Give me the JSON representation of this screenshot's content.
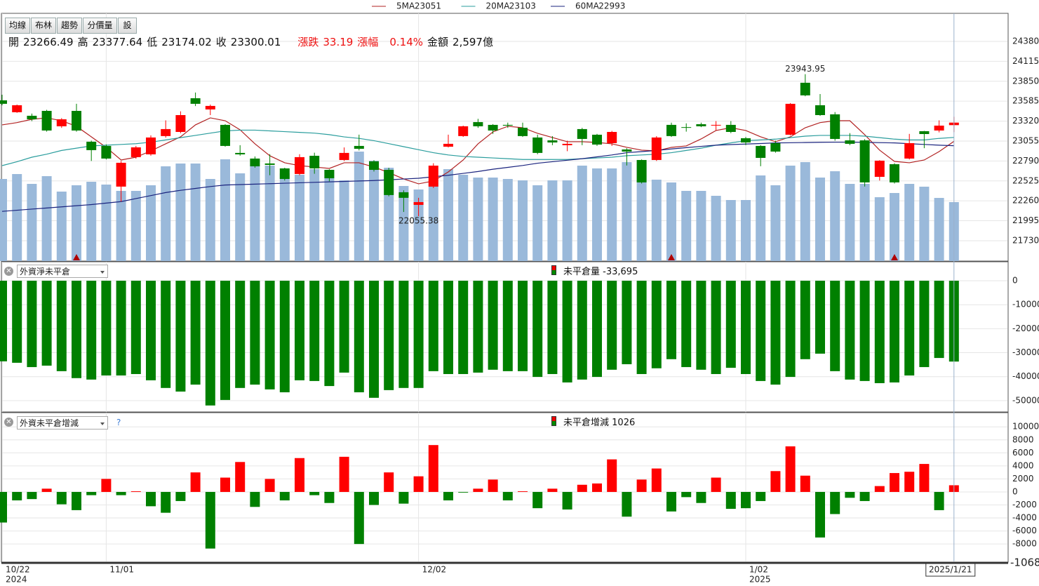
{
  "toolbar": [
    "均線",
    "布林",
    "趨勢",
    "分價量",
    "設"
  ],
  "info": [
    {
      "label": "開",
      "value": "23266.49"
    },
    {
      "label": "高",
      "value": "23377.64"
    },
    {
      "label": "低",
      "value": "23174.02"
    },
    {
      "label": "收",
      "value": "23300.01"
    },
    {
      "label": "漲跌",
      "value": "33.19",
      "color": "#ee1111"
    },
    {
      "label": "漲幅",
      "value": "0.14%",
      "color": "#ee1111"
    },
    {
      "label": "金額",
      "value": "2,597億"
    }
  ],
  "chart_data": [
    {
      "type": "candlestick",
      "up_color": "#ff0000",
      "down_color": "#008000",
      "ylim": [
        21459,
        24753
      ],
      "yticks": [
        24380,
        24115,
        23850,
        23585,
        23320,
        23055,
        22790,
        22525,
        22260,
        21995,
        21730
      ],
      "grid": true,
      "open": [
        23596,
        23438,
        23391,
        23456,
        23251,
        23456,
        23046,
        22990,
        22449,
        22841,
        22878,
        23121,
        23176,
        23624,
        23475,
        23270,
        22897,
        22822,
        22757,
        22691,
        22617,
        22859,
        22672,
        22803,
        22990,
        22785,
        22672,
        22374,
        22206,
        22449,
        22980,
        23121,
        23307,
        23270,
        23270,
        23232,
        23102,
        23064,
        23000,
        23214,
        23139,
        23027,
        22943,
        22803,
        22803,
        23270,
        23240,
        23279,
        23262,
        23270,
        23092,
        22990,
        23027,
        23139,
        23830,
        23531,
        23410,
        23064,
        23064,
        22579,
        22747,
        22822,
        23186,
        23195,
        23266.49
      ],
      "high": [
        23671,
        23540,
        23420,
        23470,
        23360,
        23550,
        23060,
        23010,
        22790,
        22990,
        23130,
        23330,
        23450,
        23700,
        23540,
        23280,
        23000,
        22850,
        22880,
        22700,
        22880,
        22900,
        22680,
        22970,
        23140,
        22800,
        22700,
        22400,
        22300,
        22760,
        23140,
        23260,
        23350,
        23280,
        23300,
        23300,
        23140,
        23120,
        23060,
        23230,
        23150,
        23190,
        22960,
        22810,
        23120,
        23300,
        23290,
        23300,
        23320,
        23320,
        23110,
        23000,
        23060,
        23560,
        23943.95,
        23680,
        23440,
        23160,
        23080,
        22800,
        22760,
        23150,
        23190,
        23330,
        23377.64
      ],
      "low": [
        23531,
        23430,
        23320,
        23180,
        23230,
        23180,
        22790,
        22810,
        22250,
        22820,
        22860,
        23100,
        23160,
        23520,
        23400,
        22980,
        22860,
        22700,
        22600,
        22530,
        22600,
        22620,
        22520,
        22790,
        22930,
        22650,
        22320,
        22112,
        22055.38,
        22430,
        22970,
        23110,
        23230,
        23150,
        23230,
        23110,
        22880,
        23000,
        22920,
        23000,
        22990,
        22990,
        22730,
        22490,
        22790,
        23110,
        23180,
        23240,
        23200,
        23160,
        23000,
        22720,
        22900,
        23130,
        23650,
        23390,
        23060,
        23000,
        22450,
        22530,
        22490,
        22810,
        22960,
        23170,
        23174.02
      ],
      "close": [
        23550,
        23531,
        23344,
        23195,
        23344,
        23195,
        22934,
        22822,
        22766,
        22971,
        23102,
        23214,
        23400,
        23550,
        23522,
        22990,
        22878,
        22719,
        22738,
        22551,
        22841,
        22691,
        22560,
        22897,
        22952,
        22672,
        22337,
        22300,
        22243,
        22728,
        23018,
        23251,
        23251,
        23195,
        23260,
        23121,
        22897,
        23036,
        23018,
        23083,
        23008,
        23176,
        22915,
        22505,
        23102,
        23121,
        23232,
        23251,
        23270,
        23176,
        23036,
        22831,
        22915,
        23550,
        23662,
        23400,
        23083,
        23018,
        22505,
        22794,
        22505,
        23027,
        23148,
        23260,
        23300.01
      ],
      "ma": [
        {
          "name": "5MA",
          "color": "#b22222",
          "legend_value": 23051,
          "values": [
            23270,
            23300,
            23344,
            23363,
            23325,
            23251,
            23111,
            22971,
            22803,
            22840,
            22924,
            23018,
            23111,
            23270,
            23363,
            23325,
            23204,
            23018,
            22859,
            22766,
            22728,
            22710,
            22691,
            22766,
            22766,
            22710,
            22635,
            22551,
            22486,
            22523,
            22644,
            22803,
            23018,
            23176,
            23251,
            23232,
            23158,
            23102,
            23046,
            23046,
            23036,
            23018,
            22971,
            22934,
            22924,
            22971,
            22990,
            23083,
            23195,
            23232,
            23195,
            23111,
            23046,
            23111,
            23232,
            23300,
            23325,
            23325,
            23139,
            22934,
            22784,
            22766,
            22803,
            22915,
            23051
          ]
        },
        {
          "name": "20MA",
          "color": "#2a9d9d",
          "legend_value": 23103,
          "values": [
            22728,
            22780,
            22840,
            22880,
            22930,
            22960,
            22990,
            23000,
            23010,
            23020,
            23040,
            23070,
            23100,
            23130,
            23160,
            23190,
            23200,
            23200,
            23190,
            23180,
            23170,
            23160,
            23140,
            23110,
            23090,
            23060,
            23020,
            22980,
            22940,
            22900,
            22870,
            22850,
            22840,
            22830,
            22820,
            22810,
            22810,
            22810,
            22810,
            22820,
            22830,
            22840,
            22860,
            22870,
            22880,
            22900,
            22930,
            22960,
            23000,
            23030,
            23060,
            23070,
            23080,
            23100,
            23120,
            23130,
            23130,
            23130,
            23120,
            23100,
            23080,
            23070,
            23070,
            23090,
            23103
          ]
        },
        {
          "name": "60MA",
          "color": "#1a237e",
          "legend_value": 22993,
          "values": [
            22120,
            22135,
            22150,
            22165,
            22180,
            22195,
            22210,
            22230,
            22250,
            22290,
            22330,
            22370,
            22400,
            22425,
            22450,
            22470,
            22476,
            22482,
            22488,
            22494,
            22500,
            22506,
            22512,
            22518,
            22524,
            22530,
            22540,
            22550,
            22560,
            22580,
            22600,
            22625,
            22650,
            22680,
            22705,
            22730,
            22760,
            22780,
            22800,
            22820,
            22845,
            22870,
            22900,
            22915,
            22930,
            22950,
            22967,
            22984,
            23000,
            23008,
            23015,
            23022,
            23030,
            23032,
            23035,
            23038,
            23040,
            23040,
            23037,
            23033,
            23030,
            23020,
            23010,
            23000,
            22993
          ]
        }
      ],
      "volume": {
        "color": "#9ab9da",
        "vlim": [
          0,
          353
        ],
        "values": [
          117,
          124,
          110,
          121,
          99,
          108,
          113,
          109,
          100,
          100,
          108,
          135,
          139,
          139,
          117,
          145,
          125,
          136,
          136,
          125,
          123,
          131,
          130,
          115,
          156,
          143,
          133,
          107,
          102,
          112,
          131,
          123,
          119,
          119,
          117,
          115,
          108,
          115,
          115,
          136,
          132,
          132,
          141,
          141,
          116,
          112,
          100,
          100,
          93,
          87,
          87,
          122,
          108,
          136,
          141,
          119,
          128,
          110,
          110,
          91,
          97,
          110,
          106,
          90,
          84
        ]
      },
      "markers": [
        5,
        45,
        60
      ],
      "marker_color": "#b00000",
      "annotations": [
        {
          "index": 54,
          "value": 23943.95,
          "color": "#cc33aa",
          "position": "above"
        },
        {
          "index": 28,
          "value": 22055.38,
          "color": "#1f8a3a",
          "position": "below"
        }
      ]
    },
    {
      "type": "bar",
      "selector": "外資淨未平倉",
      "title": "未平倉量",
      "title_value": "-33,695",
      "color": "#008000",
      "ylim": [
        -54700,
        7900
      ],
      "yticks": [
        0,
        -10000,
        -20000,
        -30000,
        -40000,
        -50000
      ],
      "grid": true,
      "values": [
        -33600,
        -34200,
        -36000,
        -35400,
        -37700,
        -40600,
        -41200,
        -39500,
        -39500,
        -38900,
        -41500,
        -44700,
        -46200,
        -43300,
        -52000,
        -49700,
        -44700,
        -43300,
        -45300,
        -46500,
        -41500,
        -41800,
        -43900,
        -38300,
        -46500,
        -48800,
        -45600,
        -44700,
        -44700,
        -37700,
        -38900,
        -38900,
        -38300,
        -37100,
        -37700,
        -37700,
        -40100,
        -38900,
        -42400,
        -41200,
        -40100,
        -37100,
        -34800,
        -38900,
        -36500,
        -32700,
        -36000,
        -37100,
        -38900,
        -36300,
        -38900,
        -41800,
        -43300,
        -40100,
        -32700,
        -30400,
        -37700,
        -41200,
        -41800,
        -42700,
        -42400,
        -39500,
        -36000,
        -32200,
        -33695
      ]
    },
    {
      "type": "bar",
      "selector": "外資未平倉增減",
      "help": "?",
      "title": "未平倉增減",
      "title_value": "1026",
      "up_color": "#ff0000",
      "down_color": "#008000",
      "ylim": [
        -10680,
        12180
      ],
      "yticks": [
        10000,
        8000,
        6000,
        4000,
        2000,
        0,
        -2000,
        -4000,
        -6000,
        -8000
      ],
      "grid": true,
      "edge_label": "-1068",
      "values": [
        -4700,
        -1300,
        -1100,
        500,
        -1900,
        -2800,
        -500,
        2000,
        -500,
        100,
        -2200,
        -3200,
        -1400,
        3000,
        -8700,
        2200,
        4600,
        -2300,
        2000,
        -1300,
        5200,
        -500,
        -1700,
        5400,
        -8000,
        -2000,
        3000,
        -1800,
        2400,
        7200,
        -1300,
        -100,
        500,
        1900,
        -1300,
        100,
        -2500,
        500,
        -2700,
        1100,
        1300,
        5000,
        -3800,
        1900,
        3600,
        -3000,
        -800,
        -1700,
        2200,
        -2600,
        -2500,
        -1400,
        3200,
        7000,
        2500,
        -7000,
        -3400,
        -900,
        -1400,
        900,
        2900,
        3100,
        4300,
        -2800,
        1026
      ],
      "categories": [
        "10/22",
        null,
        null,
        null,
        null,
        null,
        null,
        "11/01",
        null,
        null,
        null,
        null,
        null,
        null,
        null,
        null,
        null,
        null,
        null,
        null,
        null,
        null,
        null,
        null,
        null,
        null,
        null,
        null,
        "12/02",
        null,
        null,
        null,
        null,
        null,
        null,
        null,
        null,
        null,
        null,
        null,
        null,
        null,
        null,
        null,
        null,
        null,
        null,
        null,
        null,
        null,
        "1/02",
        null,
        null,
        null,
        null,
        null,
        null,
        null,
        null,
        null,
        null,
        null,
        null,
        null,
        null
      ],
      "years": [
        "2024",
        null,
        null,
        null,
        null,
        null,
        null,
        null,
        null,
        null,
        null,
        null,
        null,
        null,
        null,
        null,
        null,
        null,
        null,
        null,
        null,
        null,
        null,
        null,
        null,
        null,
        null,
        null,
        null,
        null,
        null,
        null,
        null,
        null,
        null,
        null,
        null,
        null,
        null,
        null,
        null,
        null,
        null,
        null,
        null,
        null,
        null,
        null,
        null,
        null,
        "2025",
        null,
        null,
        null,
        null,
        null,
        null,
        null,
        null,
        null,
        null,
        null,
        null,
        null,
        null
      ],
      "cursor": {
        "index": 64,
        "label": "2025/1/21"
      }
    }
  ]
}
